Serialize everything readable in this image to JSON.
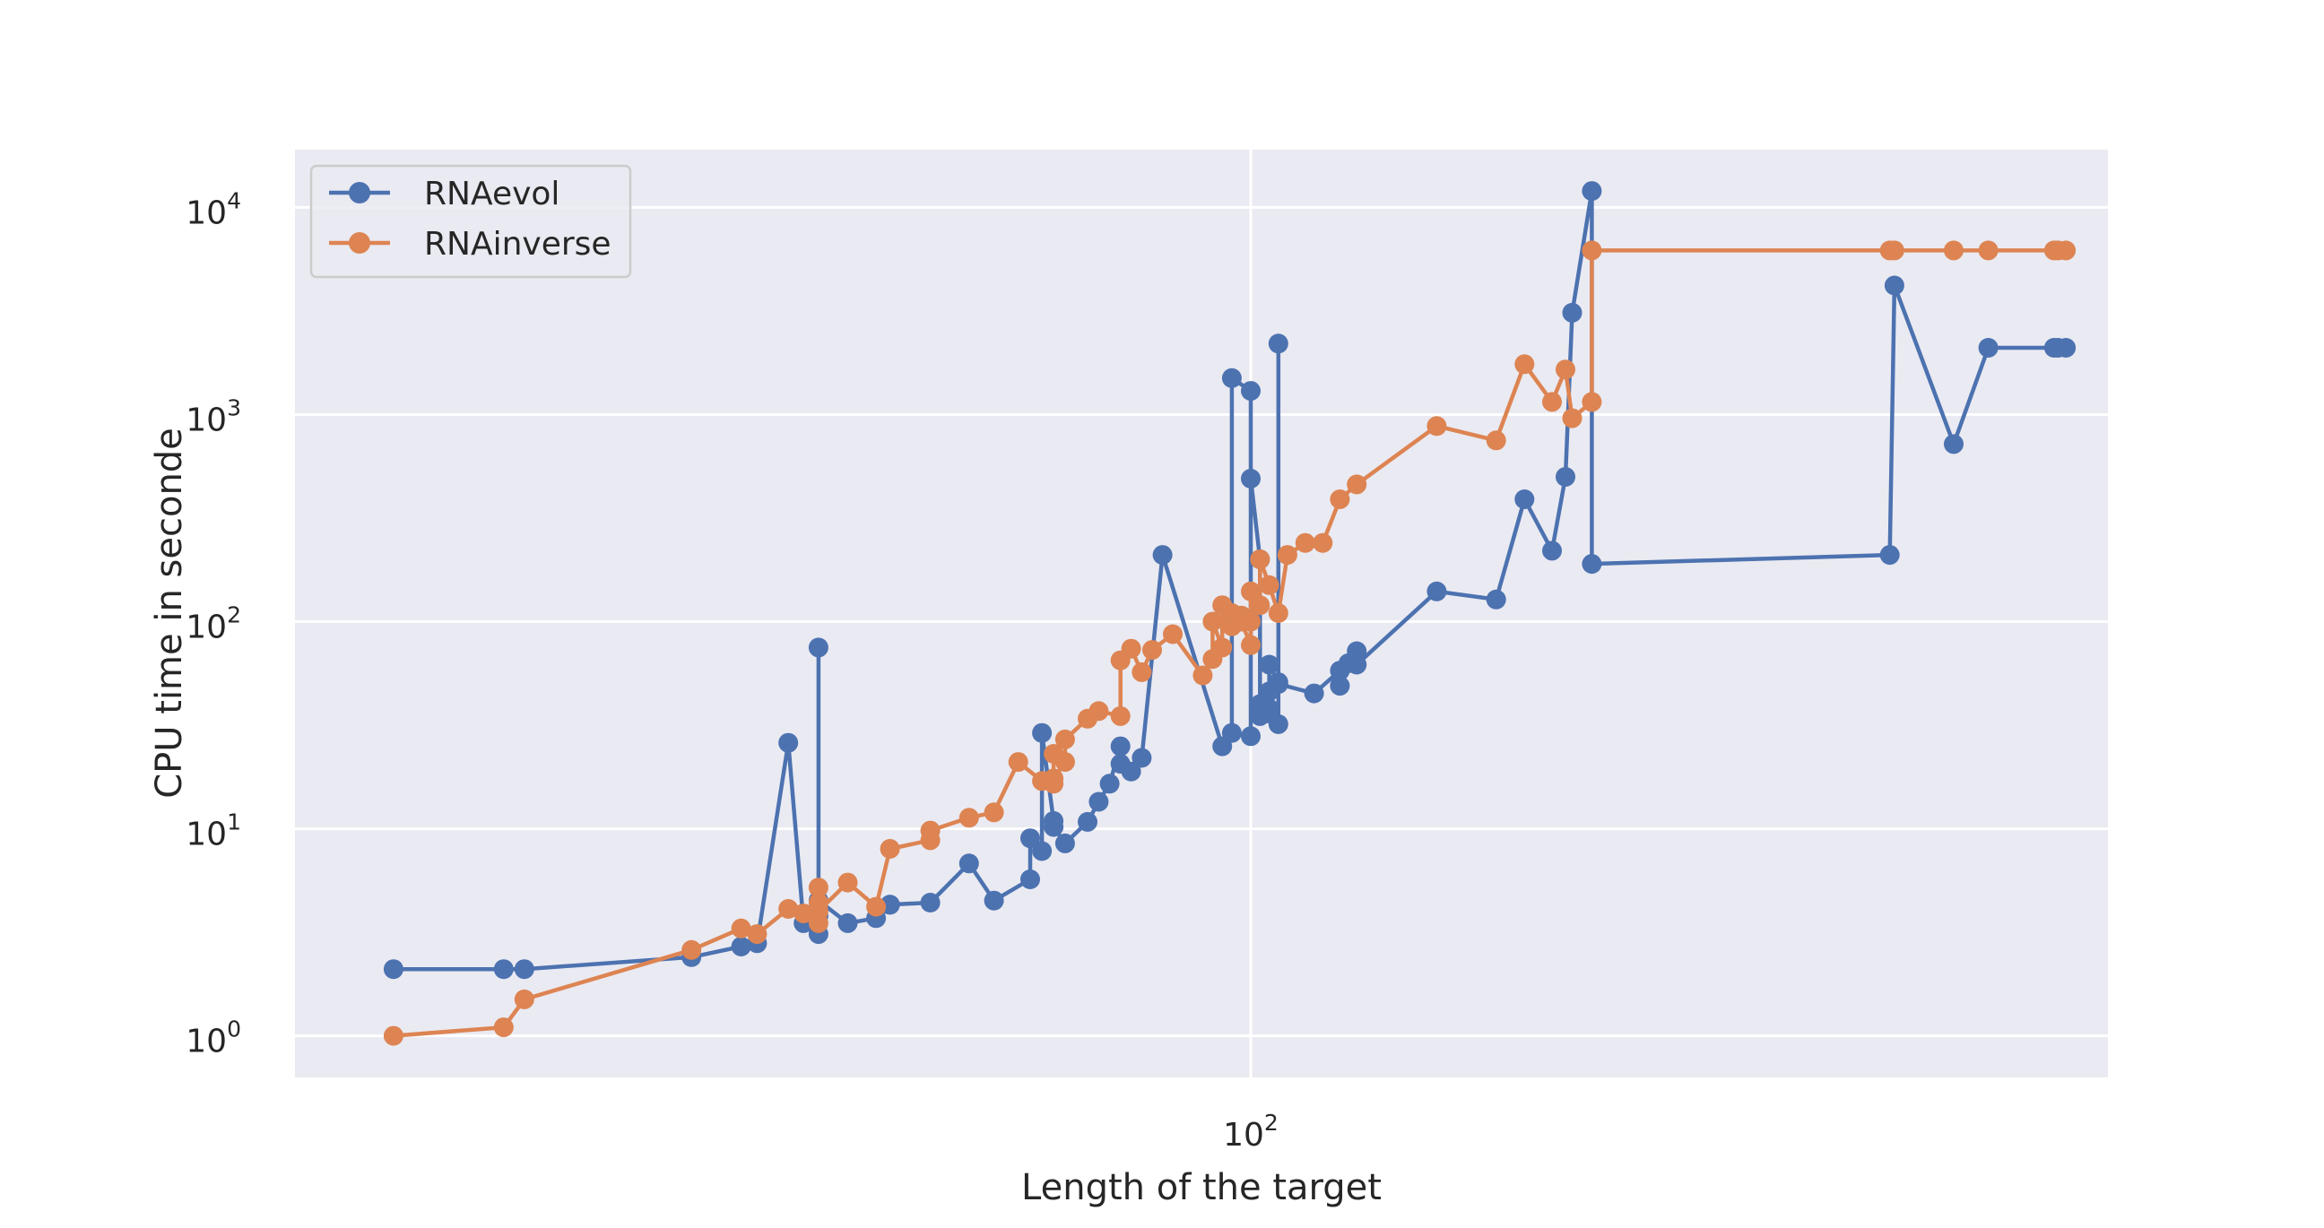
{
  "chart_data": {
    "type": "line",
    "xscale": "log",
    "yscale": "log",
    "xlabel": "Length of the target",
    "ylabel": "CPU time in seconde",
    "xlim": [
      36.0,
      250.0
    ],
    "ylim": [
      0.63,
      19000
    ],
    "xtick_labels": [
      {
        "value": 100,
        "base": "10",
        "exp": "2"
      }
    ],
    "ytick_labels": [
      {
        "value": 1,
        "base": "10",
        "exp": "0"
      },
      {
        "value": 10,
        "base": "10",
        "exp": "1"
      },
      {
        "value": 100,
        "base": "10",
        "exp": "2"
      },
      {
        "value": 1000,
        "base": "10",
        "exp": "3"
      },
      {
        "value": 10000,
        "base": "10",
        "exp": "4"
      }
    ],
    "grid": true,
    "background": "#eaeaf2",
    "legend": {
      "position": "upper-left"
    },
    "series": [
      {
        "name": "RNAevol",
        "color": "#4c72b0",
        "x": [
          40,
          45,
          46,
          55,
          58,
          59,
          61,
          62,
          63,
          63,
          63,
          63,
          65,
          67,
          68,
          68,
          71,
          74,
          76,
          79,
          79,
          80,
          80,
          81,
          81,
          82,
          84,
          85,
          86,
          87,
          87,
          88,
          89,
          91,
          97,
          98,
          98,
          100,
          100,
          100,
          101,
          101,
          101,
          102,
          102,
          102,
          102,
          103,
          103,
          103,
          103,
          107,
          110,
          110,
          111,
          112,
          112,
          122,
          130,
          134,
          138,
          140,
          141,
          144,
          144,
          198,
          199,
          212,
          220,
          236,
          237,
          239
        ],
        "y": [
          2.1,
          2.1,
          2.1,
          2.4,
          2.7,
          2.8,
          26.0,
          3.5,
          3.8,
          75.0,
          3.1,
          4.5,
          3.5,
          3.7,
          4.3,
          4.3,
          4.4,
          6.8,
          4.5,
          5.7,
          9.0,
          7.8,
          29.0,
          10.9,
          10.2,
          8.5,
          10.8,
          13.5,
          16.5,
          25.0,
          20.6,
          18.9,
          22.0,
          210.0,
          25.0,
          29.0,
          1500.0,
          1300.0,
          28.0,
          490.0,
          200.0,
          40.0,
          35.0,
          38.0,
          36.0,
          46.0,
          62.0,
          51.0,
          2200.0,
          32.0,
          50.0,
          45.0,
          58.0,
          49.0,
          63.0,
          72.0,
          62.0,
          140.0,
          128.0,
          390.0,
          220.0,
          500.0,
          3100.0,
          12000.0,
          190.0,
          210.0,
          4200.0,
          720.0,
          2100.0,
          2100.0,
          2100.0,
          2100.0
        ]
      },
      {
        "name": "RNAinverse",
        "color": "#dd8452",
        "x": [
          40,
          45,
          46,
          55,
          58,
          59,
          61,
          62,
          63,
          63,
          63,
          63,
          65,
          67,
          68,
          71,
          71,
          74,
          76,
          78,
          80,
          81,
          81,
          81,
          82,
          82,
          84,
          85,
          87,
          87,
          88,
          89,
          90,
          92,
          95,
          96,
          96,
          97,
          97,
          98,
          98,
          99,
          99,
          99,
          100,
          100,
          100,
          101,
          101,
          102,
          103,
          104,
          106,
          108,
          110,
          112,
          122,
          130,
          134,
          138,
          140,
          141,
          144,
          144,
          198,
          199,
          212,
          220,
          236,
          237,
          239
        ],
        "y": [
          1.0,
          1.1,
          1.5,
          2.6,
          3.3,
          3.1,
          4.1,
          3.9,
          4.4,
          5.2,
          3.5,
          4.0,
          5.5,
          4.2,
          8.0,
          8.8,
          9.8,
          11.3,
          12.0,
          21.0,
          17.0,
          16.5,
          23.0,
          17.5,
          21.0,
          27.0,
          34.0,
          37.0,
          35.0,
          65.0,
          74.0,
          57.0,
          73.0,
          87.0,
          55.0,
          66.0,
          100.0,
          75.0,
          120.0,
          95.0,
          110.0,
          107.0,
          100.0,
          100.0,
          77.0,
          100.0,
          140.0,
          120.0,
          200.0,
          150.0,
          110.0,
          210.0,
          240.0,
          240.0,
          390.0,
          460.0,
          880.0,
          750.0,
          1750.0,
          1150.0,
          1650.0,
          960.0,
          1150.0,
          6200.0,
          6200.0,
          6200.0,
          6200.0,
          6200.0,
          6200.0,
          6200.0,
          6200.0
        ]
      }
    ]
  }
}
